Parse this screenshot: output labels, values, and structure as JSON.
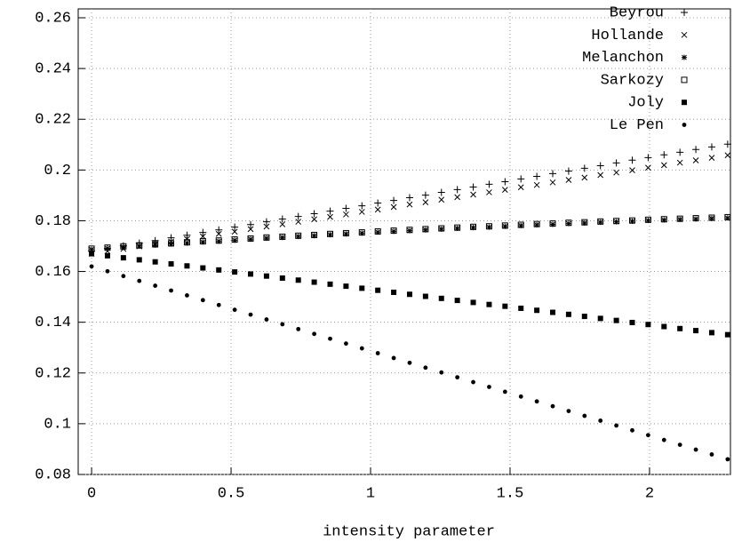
{
  "chart_data": {
    "type": "scatter",
    "xlabel": "intensity parameter",
    "x": [
      0,
      0.057,
      0.114,
      0.171,
      0.228,
      0.285,
      0.342,
      0.399,
      0.456,
      0.513,
      0.57,
      0.627,
      0.684,
      0.741,
      0.798,
      0.855,
      0.912,
      0.969,
      1.026,
      1.083,
      1.14,
      1.197,
      1.254,
      1.311,
      1.368,
      1.425,
      1.482,
      1.539,
      1.596,
      1.653,
      1.71,
      1.767,
      1.824,
      1.881,
      1.938,
      1.995,
      2.052,
      2.109,
      2.166,
      2.223,
      2.28
    ],
    "series": [
      {
        "name": "Beyrou",
        "color": "#000000",
        "marker": "plus",
        "values": [
          0.168,
          0.1691,
          0.1701,
          0.1712,
          0.1722,
          0.1733,
          0.1743,
          0.1754,
          0.1764,
          0.1775,
          0.1785,
          0.1796,
          0.1807,
          0.1817,
          0.1828,
          0.1838,
          0.1849,
          0.1859,
          0.187,
          0.188,
          0.1891,
          0.1901,
          0.1912,
          0.1923,
          0.1933,
          0.1944,
          0.1954,
          0.1965,
          0.1975,
          0.1986,
          0.1996,
          0.2007,
          0.2017,
          0.2028,
          0.2039,
          0.2049,
          0.206,
          0.207,
          0.2081,
          0.2091,
          0.2102
        ]
      },
      {
        "name": "Hollande",
        "color": "#000000",
        "marker": "cross",
        "values": [
          0.167,
          0.168,
          0.1689,
          0.1699,
          0.1709,
          0.1718,
          0.1728,
          0.1738,
          0.1748,
          0.1757,
          0.1767,
          0.1777,
          0.1786,
          0.1796,
          0.1806,
          0.1815,
          0.1825,
          0.1835,
          0.1844,
          0.1854,
          0.1864,
          0.1873,
          0.1883,
          0.1893,
          0.1903,
          0.1912,
          0.1922,
          0.1932,
          0.1941,
          0.1951,
          0.1961,
          0.197,
          0.198,
          0.199,
          0.1999,
          0.2009,
          0.2019,
          0.2029,
          0.2038,
          0.2048,
          0.2058
        ]
      },
      {
        "name": "Melanchon",
        "color": "#000000",
        "marker": "star",
        "values": [
          0.1687,
          0.1691,
          0.1696,
          0.17,
          0.1704,
          0.1708,
          0.1712,
          0.1716,
          0.1719,
          0.1723,
          0.1727,
          0.1731,
          0.1734,
          0.1738,
          0.1741,
          0.1745,
          0.1748,
          0.1751,
          0.1755,
          0.1758,
          0.1761,
          0.1764,
          0.1767,
          0.177,
          0.1773,
          0.1775,
          0.1778,
          0.1781,
          0.1784,
          0.1786,
          0.1789,
          0.1791,
          0.1794,
          0.1796,
          0.1798,
          0.1801,
          0.1803,
          0.1805,
          0.1807,
          0.1809,
          0.1811
        ]
      },
      {
        "name": "Sarkozy",
        "color": "#000000",
        "marker": "box",
        "values": [
          0.169,
          0.1694,
          0.1699,
          0.1703,
          0.1707,
          0.1711,
          0.1715,
          0.1719,
          0.1722,
          0.1726,
          0.173,
          0.1734,
          0.1737,
          0.1741,
          0.1744,
          0.1748,
          0.1751,
          0.1754,
          0.1758,
          0.1761,
          0.1764,
          0.1767,
          0.177,
          0.1773,
          0.1776,
          0.1778,
          0.1781,
          0.1784,
          0.1787,
          0.1789,
          0.1792,
          0.1794,
          0.1797,
          0.1799,
          0.1801,
          0.1804,
          0.1806,
          0.1808,
          0.181,
          0.1812,
          0.1814
        ]
      },
      {
        "name": "Joly",
        "color": "#000000",
        "marker": "filled-box",
        "values": [
          0.167,
          0.1662,
          0.1654,
          0.1646,
          0.1638,
          0.163,
          0.1622,
          0.1614,
          0.1606,
          0.1598,
          0.159,
          0.1582,
          0.1574,
          0.1566,
          0.1558,
          0.155,
          0.1542,
          0.1534,
          0.1526,
          0.1518,
          0.151,
          0.1502,
          0.1494,
          0.1486,
          0.1478,
          0.147,
          0.1463,
          0.1455,
          0.1447,
          0.1439,
          0.1431,
          0.1423,
          0.1415,
          0.1407,
          0.1399,
          0.1391,
          0.1383,
          0.1375,
          0.1367,
          0.1359,
          0.1351
        ]
      },
      {
        "name": "Le Pen",
        "color": "#000000",
        "marker": "dot",
        "values": [
          0.162,
          0.1601,
          0.1582,
          0.1563,
          0.1544,
          0.1525,
          0.1506,
          0.1487,
          0.1468,
          0.1449,
          0.143,
          0.1411,
          0.1392,
          0.1373,
          0.1354,
          0.1335,
          0.1316,
          0.1297,
          0.1278,
          0.1259,
          0.124,
          0.1221,
          0.1202,
          0.1183,
          0.1164,
          0.1145,
          0.1126,
          0.1107,
          0.1088,
          0.1069,
          0.105,
          0.1031,
          0.1012,
          0.0993,
          0.0974,
          0.0955,
          0.0936,
          0.0917,
          0.0898,
          0.0879,
          0.086
        ]
      }
    ],
    "xlim": [
      -0.048,
      2.29
    ],
    "ylim": [
      0.08,
      0.2635
    ],
    "xticks": [
      0,
      0.5,
      1,
      1.5,
      2
    ],
    "yticks": [
      0.08,
      0.1,
      0.12,
      0.14,
      0.16,
      0.18,
      0.2,
      0.22,
      0.24,
      0.26
    ],
    "grid": true,
    "legend": "top-right"
  }
}
